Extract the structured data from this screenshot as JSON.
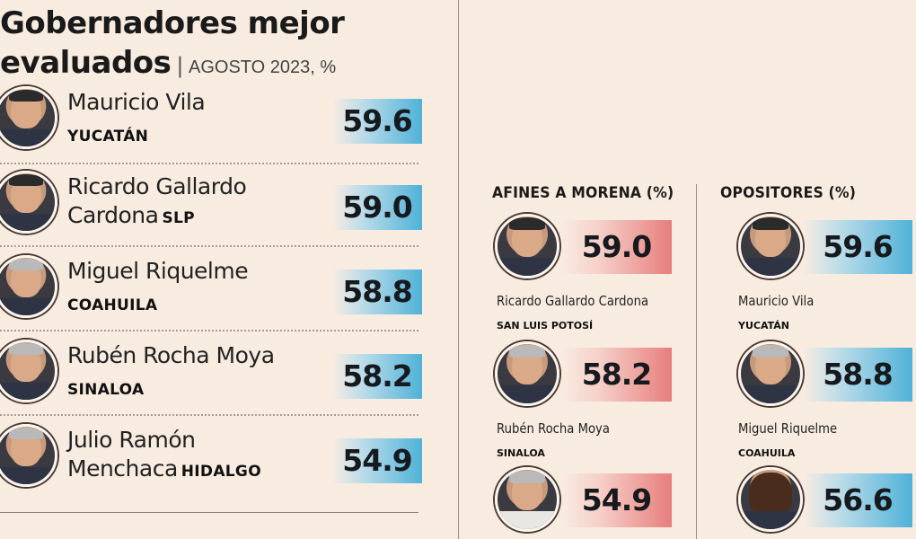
{
  "title": {
    "line1": "Gobernadores mejor",
    "line2": "evaluados",
    "separator": "|",
    "subtitle": "AGOSTO 2023, %"
  },
  "colors": {
    "background": "#f8ece1",
    "blue_bar": "#4fb2d8",
    "pink_bar": "#e77e7c"
  },
  "chart_data": [
    {
      "type": "table",
      "title": "Gobernadores mejor evaluados",
      "subtitle": "AGOSTO 2023, %",
      "rows": [
        {
          "name_line1": "Mauricio Vila",
          "name_line2": "",
          "state": "YUCATÁN",
          "value": 59.6,
          "value_label": "59.6"
        },
        {
          "name_line1": "Ricardo Gallardo",
          "name_line2": "Cardona",
          "state": "SLP",
          "value": 59.0,
          "value_label": "59.0"
        },
        {
          "name_line1": "Miguel Riquelme",
          "name_line2": "",
          "state": "COAHUILA",
          "value": 58.8,
          "value_label": "58.8"
        },
        {
          "name_line1": "Rubén Rocha Moya",
          "name_line2": "",
          "state": "SINALOA",
          "value": 58.2,
          "value_label": "58.2"
        },
        {
          "name_line1": "Julio Ramón",
          "name_line2": "Menchaca",
          "state": "HIDALGO",
          "value": 54.9,
          "value_label": "54.9"
        }
      ]
    },
    {
      "type": "table",
      "title": "AFINES A MORENA (%)",
      "rows": [
        {
          "name": "Ricardo Gallardo Cardona",
          "state": "SAN LUIS POTOSÍ",
          "value": 59.0,
          "value_label": "59.0"
        },
        {
          "name": "Rubén Rocha Moya",
          "state": "SINALOA",
          "value": 58.2,
          "value_label": "58.2"
        },
        {
          "name": "",
          "state": "",
          "value": 54.9,
          "value_label": "54.9"
        }
      ]
    },
    {
      "type": "table",
      "title": "OPOSITORES (%)",
      "rows": [
        {
          "name": "Mauricio Vila",
          "state": "YUCATÁN",
          "value": 59.6,
          "value_label": "59.6"
        },
        {
          "name": "Miguel Riquelme",
          "state": "COAHUILA",
          "value": 58.8,
          "value_label": "58.8"
        },
        {
          "name": "",
          "state": "",
          "value": 56.6,
          "value_label": "56.6"
        }
      ]
    }
  ]
}
